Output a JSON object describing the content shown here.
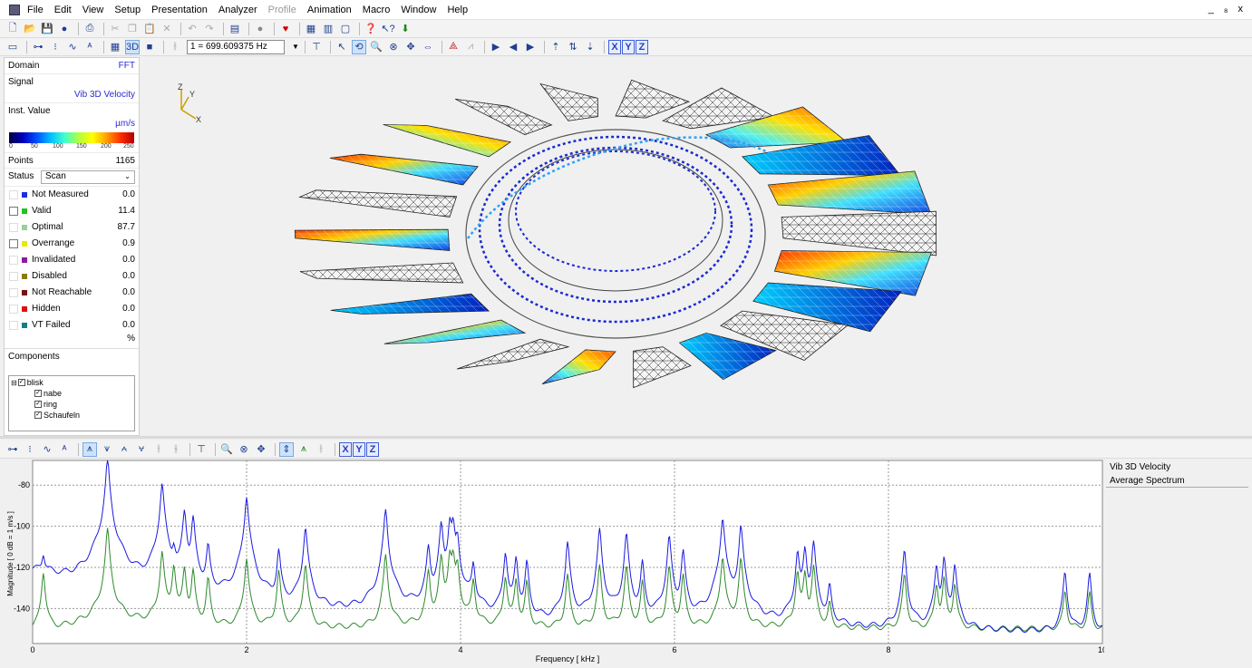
{
  "menu": {
    "items": [
      "File",
      "Edit",
      "View",
      "Setup",
      "Presentation",
      "Analyzer",
      "Profile",
      "Animation",
      "Macro",
      "Window",
      "Help"
    ],
    "disabled_index": 6,
    "window_controls": "_ ₈ x"
  },
  "toolbar2": {
    "frequency_value": "1  = 699.609375 Hz",
    "axes": [
      "X",
      "Y",
      "Z"
    ]
  },
  "toolbar3": {
    "axes": [
      "X",
      "Y",
      "Z"
    ]
  },
  "left_panel": {
    "domain_label": "Domain",
    "domain_value": "FFT",
    "signal_label": "Signal",
    "signal_value": "Vib 3D Velocity",
    "inst_label": "Inst. Value",
    "inst_unit": "µm/s",
    "colorbar_ticks": [
      "0",
      "50",
      "100",
      "150",
      "200",
      "250"
    ],
    "points_label": "Points",
    "points_value": "1165",
    "status_label": "Status",
    "status_value": "Scan",
    "legend": [
      {
        "label": "Not Measured",
        "value": "0.0",
        "color": "#1c2ee0"
      },
      {
        "label": "Valid",
        "value": "11.4",
        "color": "#22c222"
      },
      {
        "label": "Optimal",
        "value": "87.7",
        "color": "#9ad09a"
      },
      {
        "label": "Overrange",
        "value": "0.9",
        "color": "#e8e800"
      },
      {
        "label": "Invalidated",
        "value": "0.0",
        "color": "#8a1aa0"
      },
      {
        "label": "Disabled",
        "value": "0.0",
        "color": "#8a7a10"
      },
      {
        "label": "Not Reachable",
        "value": "0.0",
        "color": "#7a1010"
      },
      {
        "label": "Hidden",
        "value": "0.0",
        "color": "#e01010"
      },
      {
        "label": "VT Failed",
        "value": "0.0",
        "color": "#108080"
      }
    ],
    "percent_sign": "%",
    "components_label": "Components",
    "tree": {
      "root": "blisk",
      "children": [
        "nabe",
        "ring",
        "Schaufeln"
      ]
    }
  },
  "view3d": {
    "axis_labels": {
      "y": "Y",
      "z": "Z",
      "x": "X"
    }
  },
  "spectrum_legend": {
    "line1": "Vib 3D Velocity",
    "line2": "Average Spectrum"
  },
  "chart_data": {
    "type": "line",
    "xlabel": "Frequency [ kHz ]",
    "ylabel": "Magnitude [ 0 dB = 1 m/s ]",
    "xlim": [
      0,
      10
    ],
    "ylim": [
      -157,
      -68
    ],
    "x_ticks": [
      0,
      2,
      4,
      6,
      8,
      10
    ],
    "y_ticks": [
      -80,
      -100,
      -120,
      -140
    ],
    "grid": true,
    "peaks_khz": [
      0.1,
      0.7,
      1.21,
      1.32,
      1.42,
      1.5,
      1.64,
      2.0,
      2.3,
      2.55,
      3.3,
      3.7,
      3.82,
      3.9,
      3.93,
      3.97,
      4.12,
      4.42,
      4.52,
      4.62,
      5.0,
      5.3,
      5.55,
      5.7,
      5.95,
      6.08,
      6.45,
      6.62,
      7.15,
      7.22,
      7.3,
      7.45,
      8.15,
      8.45,
      8.52,
      8.62,
      9.65,
      9.88
    ],
    "series": [
      {
        "name": "",
        "color": "#1a1ae0",
        "peak_db": [
          -118,
          -68,
          -79,
          -112,
          -92,
          -96,
          -110,
          -85,
          -112,
          -100,
          -92,
          -110,
          -99,
          -96,
          -98,
          -105,
          -118,
          -112,
          -115,
          -118,
          -108,
          -102,
          -104,
          -118,
          -105,
          -112,
          -95,
          -100,
          -112,
          -110,
          -108,
          -130,
          -112,
          -118,
          -116,
          -118,
          -122,
          -124
        ],
        "floor_db": [
          -122,
          -138,
          -140,
          -141,
          -141,
          -141,
          -142,
          -143,
          -144,
          -145,
          -146,
          -147,
          -148,
          -149,
          -150,
          -150,
          -150,
          -150,
          -151,
          -151,
          -151,
          -151,
          -151,
          -151,
          -151,
          -151,
          -152,
          -152,
          -152,
          -152,
          -152,
          -152,
          -152,
          -152,
          -152,
          -152,
          -152,
          -152
        ]
      },
      {
        "name": "",
        "color": "#2e8a2e",
        "peak_db": [
          -122,
          -102,
          -112,
          -118,
          -120,
          -122,
          -126,
          -115,
          -122,
          -118,
          -114,
          -122,
          -115,
          -112,
          -114,
          -118,
          -126,
          -124,
          -126,
          -128,
          -124,
          -120,
          -120,
          -128,
          -120,
          -124,
          -114,
          -116,
          -122,
          -122,
          -120,
          -140,
          -124,
          -128,
          -126,
          -128,
          -132,
          -134
        ],
        "floor_db": [
          -152,
          -146,
          -149,
          -150,
          -150,
          -150,
          -150,
          -150,
          -150,
          -150,
          -150,
          -150,
          -150,
          -150,
          -150,
          -150,
          -150,
          -150,
          -150,
          -150,
          -150,
          -150,
          -150,
          -150,
          -150,
          -150,
          -150,
          -150,
          -150,
          -150,
          -150,
          -150,
          -150,
          -150,
          -150,
          -150,
          -150,
          -150
        ]
      }
    ]
  }
}
